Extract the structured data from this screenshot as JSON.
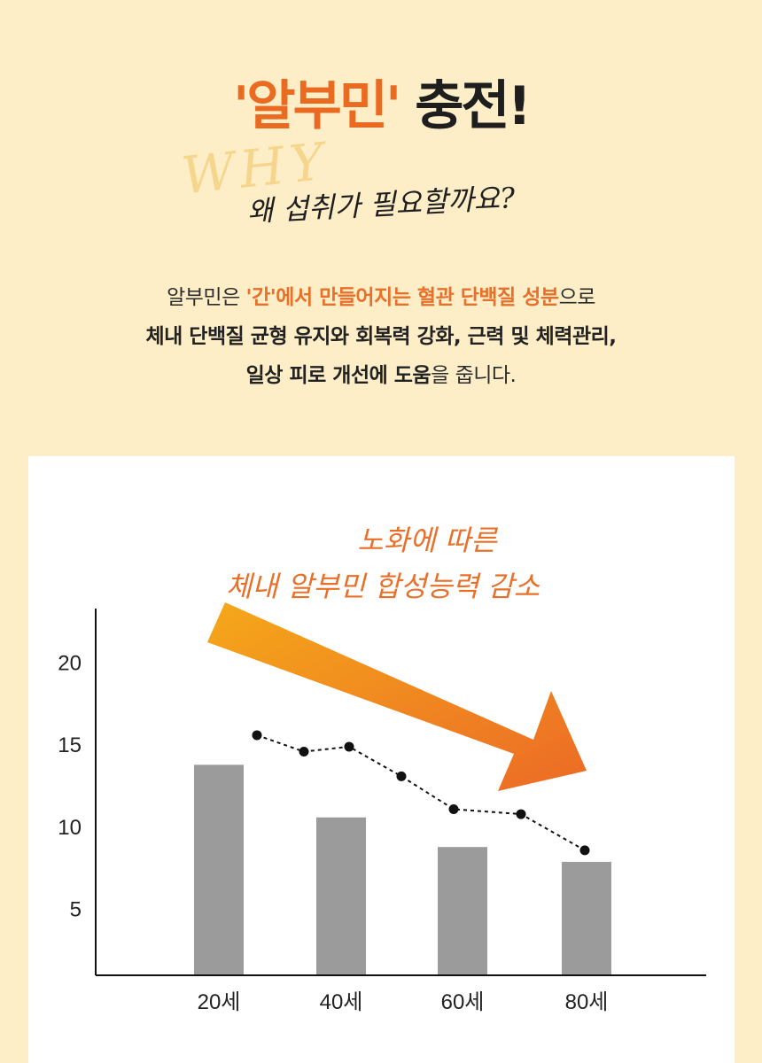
{
  "headline": {
    "part1": "'알부민'",
    "part2": " 충전!"
  },
  "why_script": "WHY",
  "sub_script": "왜 섭취가 필요할까요?",
  "intro": {
    "l1_a": "알부민은 ",
    "l1_b": "'간'에서 만들어지는 혈관 단백질 성분",
    "l1_c": "으로",
    "l2": "체내 단백질 균형 유지와 회복력 강화, 근력 및 체력관리,",
    "l3_a": "일상 피로 개선에 도움",
    "l3_b": "을 줍니다."
  },
  "annotation": {
    "line1": "노화에 따른",
    "line2": "체내 알부민 합성능력 감소"
  },
  "colors": {
    "accent": "#ea6a22",
    "bar": "#9b9b9b",
    "arrow_start": "#f5a81a",
    "arrow_end": "#ec6a26",
    "background": "#fdeec8"
  },
  "chart_data": {
    "type": "bar",
    "categories": [
      "20세",
      "40세",
      "60세",
      "80세"
    ],
    "y_ticks": [
      5,
      10,
      15,
      20
    ],
    "ylim": [
      1,
      23.3
    ],
    "bars": [
      13.8,
      10.6,
      8.8,
      7.9
    ],
    "line_points": [
      {
        "x": "20세",
        "y": 15.6
      },
      {
        "x": "",
        "y": 14.6
      },
      {
        "x": "40세",
        "y": 14.9
      },
      {
        "x": "",
        "y": 13.1
      },
      {
        "x": "60세",
        "y": 11.1
      },
      {
        "x": "",
        "y": 10.8
      },
      {
        "x": "80세",
        "y": 8.6
      }
    ],
    "grid": false,
    "legend": "none"
  }
}
